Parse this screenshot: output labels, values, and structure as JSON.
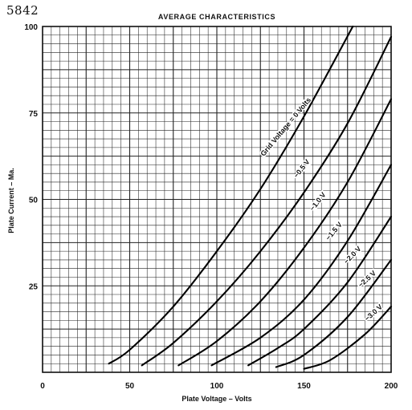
{
  "tube_id": "5842",
  "chart_data": {
    "type": "line",
    "title": "AVERAGE CHARACTERISTICS",
    "xlabel": "Plate Voltage – Volts",
    "ylabel": "Plate Current – Ma.",
    "xlim": [
      0,
      200
    ],
    "ylim": [
      0,
      100
    ],
    "xticks": [
      0,
      50,
      100,
      150,
      200
    ],
    "yticks": [
      25,
      50,
      75,
      100
    ],
    "x_minor_step": 5,
    "y_minor_step": 2.5,
    "grid": true,
    "series": [
      {
        "name": "Grid Voltage = 0 Volts",
        "x": [
          38,
          50,
          75,
          100,
          125,
          150,
          178
        ],
        "y": [
          2.5,
          6.5,
          19,
          35,
          53,
          74,
          100
        ]
      },
      {
        "name": "−0.5 V",
        "x": [
          57,
          75,
          100,
          125,
          150,
          175,
          200
        ],
        "y": [
          2,
          8.5,
          20.5,
          35,
          52,
          72,
          97
        ]
      },
      {
        "name": "−1.0 V",
        "x": [
          78,
          100,
          125,
          150,
          175,
          200
        ],
        "y": [
          2,
          9,
          20.5,
          36,
          55,
          79
        ]
      },
      {
        "name": "−1.5 V",
        "x": [
          97,
          125,
          150,
          175,
          200
        ],
        "y": [
          2,
          10,
          21,
          38,
          60
        ]
      },
      {
        "name": "−2.0 V",
        "x": [
          118,
          135,
          150,
          175,
          200
        ],
        "y": [
          2,
          7,
          12.5,
          26,
          45
        ]
      },
      {
        "name": "−2.5 V",
        "x": [
          134,
          150,
          175,
          200
        ],
        "y": [
          1.5,
          5,
          16,
          32.5
        ]
      },
      {
        "name": "−3.0 V",
        "x": [
          150,
          165,
          185,
          200
        ],
        "y": [
          1,
          3.5,
          11,
          19
        ]
      }
    ]
  }
}
